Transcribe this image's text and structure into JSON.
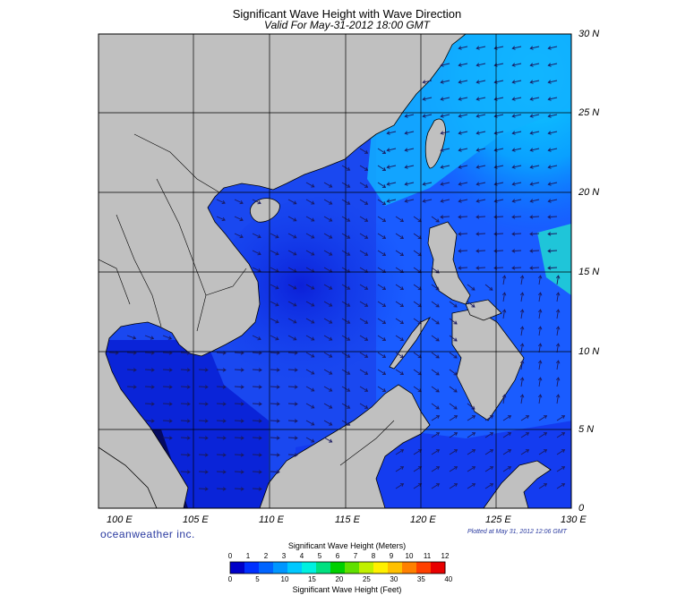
{
  "title": "Significant Wave Height with Wave Direction",
  "subtitle": "Valid For May-31-2012 18:00 GMT",
  "longitude_labels": [
    "100 E",
    "105 E",
    "110 E",
    "115 E",
    "120 E",
    "125 E",
    "130 E"
  ],
  "latitude_labels": [
    "30 N",
    "25 N",
    "20 N",
    "15 N",
    "10 N",
    "5 N",
    "0"
  ],
  "brand": "oceanweather inc.",
  "plotted_at": "Plotted at May 31, 2012 12:06 GMT",
  "colorbar": {
    "meters_title": "Significant Wave Height (Meters)",
    "feet_title": "Significant Wave Height (Feet)",
    "meters_ticks": [
      "0",
      "1",
      "2",
      "3",
      "4",
      "5",
      "6",
      "7",
      "8",
      "9",
      "10",
      "11",
      "12"
    ],
    "feet_ticks": [
      "0",
      "5",
      "10",
      "15",
      "20",
      "25",
      "30",
      "35",
      "40"
    ],
    "colors": [
      "#0000c8",
      "#0030ff",
      "#0064ff",
      "#0096ff",
      "#00c8ff",
      "#00f0e0",
      "#00e080",
      "#00d000",
      "#60e000",
      "#c0f000",
      "#fff000",
      "#ffc000",
      "#ff8000",
      "#ff4000",
      "#e80000"
    ]
  },
  "colors": {
    "land": "#c0c0c0",
    "deep_sea": "#0a1cd8",
    "mid_sea": "#1848f0",
    "shelf_sea": "#0c60ff",
    "cyan_sea": "#10b8ff",
    "arrow": "#1a1a60"
  }
}
